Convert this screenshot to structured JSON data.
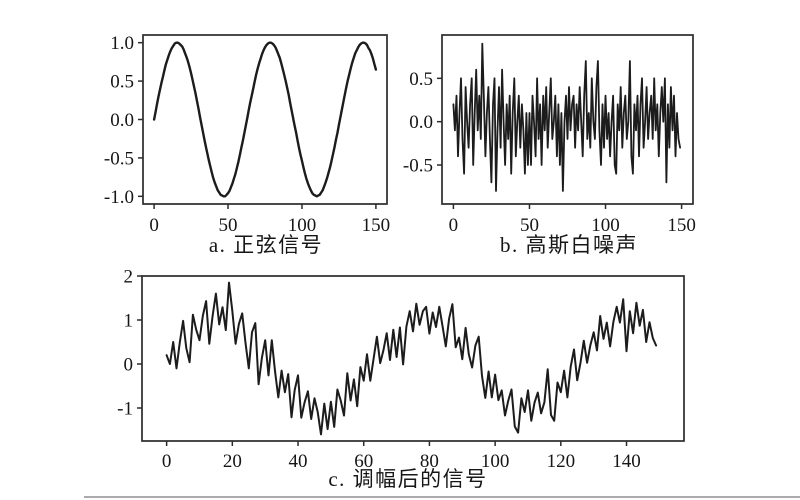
{
  "page": {
    "background": "#ffffff",
    "divider_color": "#ababab",
    "line_color": "#1c1c1c",
    "axis_color": "#2b2b2b",
    "text_color": "#161616"
  },
  "chart_data": [
    {
      "id": "a",
      "type": "line",
      "title": "a. 正弦信号",
      "x_start": 0,
      "x_step": 1,
      "xlim": [
        -7.5,
        157.5
      ],
      "ylim": [
        -1.1,
        1.1
      ],
      "xticks": [
        "0",
        "50",
        "100",
        "150"
      ],
      "yticks": [
        "-1.0",
        "-0.5",
        "0.0",
        "0.5",
        "1.0"
      ],
      "grid": false,
      "legend": null,
      "line_color": "#1c1c1c",
      "values": [
        0.0,
        0.1,
        0.2,
        0.3,
        0.39,
        0.48,
        0.56,
        0.64,
        0.72,
        0.78,
        0.84,
        0.89,
        0.93,
        0.96,
        0.99,
        1.0,
        1.0,
        0.99,
        0.97,
        0.95,
        0.91,
        0.86,
        0.81,
        0.75,
        0.68,
        0.6,
        0.52,
        0.43,
        0.34,
        0.24,
        0.14,
        0.04,
        -0.06,
        -0.16,
        -0.26,
        -0.35,
        -0.44,
        -0.53,
        -0.61,
        -0.69,
        -0.76,
        -0.82,
        -0.87,
        -0.92,
        -0.95,
        -0.98,
        -0.99,
        -1.0,
        -1.0,
        -0.98,
        -0.96,
        -0.93,
        -0.88,
        -0.83,
        -0.77,
        -0.71,
        -0.63,
        -0.55,
        -0.46,
        -0.37,
        -0.28,
        -0.18,
        -0.08,
        0.02,
        0.12,
        0.22,
        0.31,
        0.4,
        0.49,
        0.58,
        0.66,
        0.73,
        0.79,
        0.85,
        0.9,
        0.94,
        0.97,
        0.99,
        1.0,
        1.0,
        0.99,
        0.97,
        0.94,
        0.9,
        0.85,
        0.8,
        0.73,
        0.66,
        0.58,
        0.5,
        0.41,
        0.32,
        0.22,
        0.12,
        0.02,
        -0.08,
        -0.17,
        -0.27,
        -0.37,
        -0.46,
        -0.54,
        -0.62,
        -0.7,
        -0.77,
        -0.83,
        -0.88,
        -0.92,
        -0.96,
        -0.98,
        -0.99,
        -1.0,
        -0.99,
        -0.98,
        -0.95,
        -0.92,
        -0.87,
        -0.82,
        -0.76,
        -0.69,
        -0.62,
        -0.54,
        -0.45,
        -0.36,
        -0.26,
        -0.17,
        -0.07,
        0.03,
        0.13,
        0.23,
        0.33,
        0.42,
        0.51,
        0.59,
        0.67,
        0.74,
        0.8,
        0.86,
        0.9,
        0.94,
        0.97,
        0.99,
        1.0,
        1.0,
        0.99,
        0.97,
        0.93,
        0.9,
        0.85,
        0.79,
        0.72,
        0.65
      ]
    },
    {
      "id": "b",
      "type": "line",
      "title": "b. 高斯白噪声",
      "x_start": 0,
      "x_step": 1,
      "xlim": [
        -7.5,
        157.5
      ],
      "ylim": [
        -0.95,
        1.0
      ],
      "xticks": [
        "0",
        "50",
        "100",
        "150"
      ],
      "yticks": [
        "-0.5",
        "0.0",
        "0.5"
      ],
      "grid": false,
      "legend": null,
      "line_color": "#1c1c1c",
      "values": [
        0.2,
        -0.1,
        0.3,
        -0.4,
        0.1,
        0.5,
        -0.2,
        -0.6,
        0.4,
        0.0,
        -0.3,
        0.2,
        0.5,
        -0.5,
        0.1,
        0.6,
        -0.1,
        0.3,
        -0.2,
        0.9,
        0.3,
        -0.4,
        0.1,
        0.4,
        -0.2,
        -0.7,
        0.2,
        0.5,
        -0.8,
        -0.1,
        0.4,
        -0.3,
        0.6,
        0.0,
        -0.5,
        0.2,
        -0.2,
        0.3,
        -0.6,
        0.1,
        0.5,
        -0.4,
        0.0,
        0.3,
        -0.3,
        0.2,
        -0.1,
        -0.6,
        0.1,
        -0.5,
        0.1,
        -0.5,
        0.3,
        0.0,
        -0.4,
        0.5,
        -0.2,
        0.2,
        -0.5,
        0.3,
        -0.1,
        0.4,
        -0.3,
        0.1,
        0.5,
        -0.2,
        0.0,
        0.3,
        -0.4,
        0.2,
        -0.5,
        0.1,
        -0.8,
        0.0,
        0.3,
        -0.2,
        0.4,
        -0.1,
        0.2,
        0.3,
        -0.3,
        0.2,
        -0.1,
        0.4,
        0.0,
        -0.4,
        0.3,
        0.7,
        -0.2,
        0.1,
        -0.3,
        0.5,
        0.0,
        -0.2,
        0.4,
        0.7,
        -0.1,
        -0.5,
        0.2,
        -0.3,
        0.3,
        -0.2,
        0.1,
        -0.4,
        0.0,
        0.3,
        -0.5,
        -0.6,
        0.2,
        -0.1,
        0.4,
        -0.3,
        0.1,
        0.3,
        -0.2,
        0.0,
        0.7,
        -0.4,
        -0.6,
        0.2,
        -0.1,
        0.3,
        -0.4,
        0.2,
        0.5,
        -0.3,
        0.0,
        0.4,
        -0.2,
        0.1,
        0.3,
        -0.2,
        0.5,
        -0.1,
        0.2,
        -0.4,
        0.1,
        0.4,
        0.0,
        0.5,
        -0.7,
        0.2,
        -0.3,
        0.4,
        -0.1,
        0.3,
        -0.4,
        0.1,
        -0.2,
        -0.3
      ]
    },
    {
      "id": "c",
      "type": "line",
      "title": "c. 调幅后的信号",
      "x_start": 0,
      "x_step": 1,
      "xlim": [
        -7.5,
        157.5
      ],
      "ylim": [
        -1.75,
        2.0
      ],
      "xticks": [
        "0",
        "20",
        "40",
        "60",
        "80",
        "100",
        "120",
        "140"
      ],
      "yticks": [
        "-1",
        "0",
        "1",
        "2"
      ],
      "grid": false,
      "legend": null,
      "line_color": "#1c1c1c",
      "values": [
        0.2,
        0.0,
        0.5,
        -0.1,
        0.49,
        0.98,
        0.36,
        0.04,
        1.12,
        0.78,
        0.54,
        1.09,
        1.43,
        0.46,
        1.09,
        1.6,
        0.9,
        1.29,
        0.77,
        1.85,
        1.21,
        0.46,
        0.91,
        1.15,
        0.48,
        -0.1,
        0.72,
        0.93,
        -0.46,
        0.14,
        0.54,
        -0.26,
        0.54,
        -0.16,
        -0.76,
        -0.15,
        -0.64,
        -0.23,
        -1.21,
        -0.59,
        -0.26,
        -1.22,
        -0.87,
        -0.62,
        -1.25,
        -0.78,
        -1.09,
        -1.6,
        -0.9,
        -1.48,
        -0.86,
        -1.43,
        -0.58,
        -0.83,
        -1.17,
        -0.21,
        -0.83,
        -0.35,
        -0.96,
        -0.07,
        -0.38,
        0.22,
        -0.38,
        0.12,
        0.62,
        0.02,
        0.31,
        0.7,
        0.09,
        0.78,
        0.16,
        0.83,
        -0.01,
        0.85,
        1.2,
        0.74,
        1.37,
        0.89,
        1.2,
        1.3,
        0.69,
        1.17,
        0.84,
        1.3,
        0.85,
        0.4,
        1.03,
        1.36,
        0.38,
        0.6,
        0.11,
        0.82,
        0.22,
        -0.08,
        0.42,
        0.62,
        -0.27,
        -0.77,
        -0.17,
        -0.76,
        -0.24,
        -0.82,
        -0.6,
        -1.17,
        -0.83,
        -0.58,
        -1.42,
        -1.56,
        -0.78,
        -1.09,
        -0.6,
        -1.29,
        -0.88,
        -0.65,
        -1.12,
        -0.87,
        -0.12,
        -1.16,
        -1.29,
        -0.42,
        -0.64,
        -0.15,
        -0.76,
        -0.06,
        0.33,
        -0.37,
        0.03,
        0.53,
        0.03,
        0.43,
        0.72,
        0.31,
        1.09,
        0.57,
        0.94,
        0.4,
        0.96,
        1.3,
        0.94,
        1.47,
        0.29,
        1.2,
        0.7,
        1.39,
        0.87,
        1.23,
        0.5,
        0.95,
        0.59,
        0.42
      ]
    }
  ]
}
